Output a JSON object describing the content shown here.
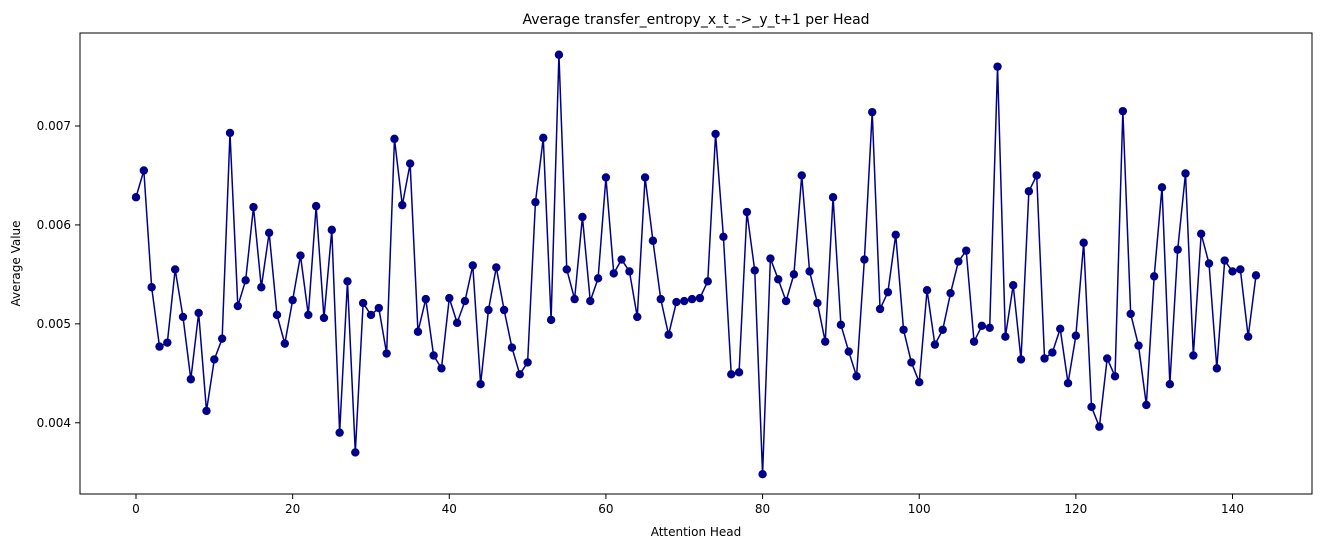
{
  "chart_data": {
    "type": "line",
    "title": "Average transfer_entropy_x_t_->_y_t+1 per Head",
    "xlabel": "Attention Head",
    "ylabel": "Average Value",
    "xlim": [
      -7.15,
      150.15
    ],
    "ylim": [
      0.00328,
      0.00794
    ],
    "xticks": [
      0,
      20,
      40,
      60,
      80,
      100,
      120,
      140
    ],
    "yticks": [
      0.004,
      0.005,
      0.006,
      0.007
    ],
    "ytick_labels": [
      "0.004",
      "0.005",
      "0.006",
      "0.007"
    ],
    "grid": false,
    "legend": "none",
    "series": [
      {
        "color": "#00008b",
        "marker": "circle",
        "x": [
          0,
          1,
          2,
          3,
          4,
          5,
          6,
          7,
          8,
          9,
          10,
          11,
          12,
          13,
          14,
          15,
          16,
          17,
          18,
          19,
          20,
          21,
          22,
          23,
          24,
          25,
          26,
          27,
          28,
          29,
          30,
          31,
          32,
          33,
          34,
          35,
          36,
          37,
          38,
          39,
          40,
          41,
          42,
          43,
          44,
          45,
          46,
          47,
          48,
          49,
          50,
          51,
          52,
          53,
          54,
          55,
          56,
          57,
          58,
          59,
          60,
          61,
          62,
          63,
          64,
          65,
          66,
          67,
          68,
          69,
          70,
          71,
          72,
          73,
          74,
          75,
          76,
          77,
          78,
          79,
          80,
          81,
          82,
          83,
          84,
          85,
          86,
          87,
          88,
          89,
          90,
          91,
          92,
          93,
          94,
          95,
          96,
          97,
          98,
          99,
          100,
          101,
          102,
          103,
          104,
          105,
          106,
          107,
          108,
          109,
          110,
          111,
          112,
          113,
          114,
          115,
          116,
          117,
          118,
          119,
          120,
          121,
          122,
          123,
          124,
          125,
          126,
          127,
          128,
          129,
          130,
          131,
          132,
          133,
          134,
          135,
          136,
          137,
          138,
          139,
          140,
          141,
          142,
          143
        ],
        "y": [
          0.00628,
          0.00655,
          0.00537,
          0.00477,
          0.00481,
          0.00555,
          0.00507,
          0.00444,
          0.00511,
          0.00412,
          0.00464,
          0.00485,
          0.00693,
          0.00518,
          0.00544,
          0.00618,
          0.00537,
          0.00592,
          0.00509,
          0.0048,
          0.00524,
          0.00569,
          0.00509,
          0.00619,
          0.00506,
          0.00595,
          0.0039,
          0.00543,
          0.0037,
          0.00521,
          0.00509,
          0.00516,
          0.0047,
          0.00687,
          0.0062,
          0.00662,
          0.00492,
          0.00525,
          0.00468,
          0.00455,
          0.00526,
          0.00501,
          0.00523,
          0.00559,
          0.00439,
          0.00514,
          0.00557,
          0.00514,
          0.00476,
          0.00449,
          0.00461,
          0.00623,
          0.00688,
          0.00504,
          0.00772,
          0.00555,
          0.00525,
          0.00608,
          0.00523,
          0.00546,
          0.00648,
          0.00551,
          0.00565,
          0.00553,
          0.00507,
          0.00648,
          0.00584,
          0.00525,
          0.00489,
          0.00522,
          0.00523,
          0.00525,
          0.00526,
          0.00543,
          0.00692,
          0.00588,
          0.00449,
          0.00451,
          0.00613,
          0.00554,
          0.00348,
          0.00566,
          0.00545,
          0.00523,
          0.0055,
          0.0065,
          0.00553,
          0.00521,
          0.00482,
          0.00628,
          0.00499,
          0.00472,
          0.00447,
          0.00565,
          0.00714,
          0.00515,
          0.00532,
          0.0059,
          0.00494,
          0.00461,
          0.00441,
          0.00534,
          0.00479,
          0.00494,
          0.00531,
          0.00563,
          0.00574,
          0.00482,
          0.00498,
          0.00496,
          0.0076,
          0.00487,
          0.00539,
          0.00464,
          0.00634,
          0.0065,
          0.00465,
          0.00471,
          0.00495,
          0.0044,
          0.00488,
          0.00582,
          0.00416,
          0.00396,
          0.00465,
          0.00447,
          0.00715,
          0.0051,
          0.00478,
          0.00418,
          0.00548,
          0.00638,
          0.00439,
          0.00575,
          0.00652,
          0.00468,
          0.00591,
          0.00561,
          0.00455,
          0.00564,
          0.00553,
          0.00555,
          0.00487,
          0.00549
        ]
      }
    ]
  }
}
